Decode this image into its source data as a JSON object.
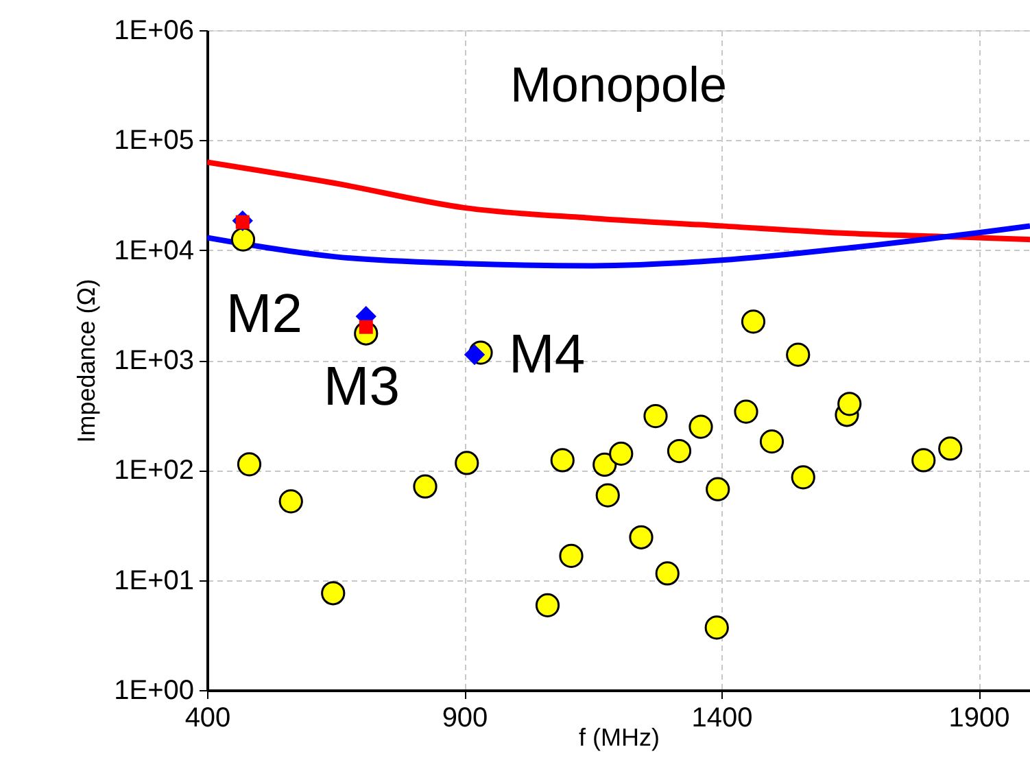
{
  "chart_data": {
    "type": "scatter",
    "xlabel": "f (MHz)",
    "ylabel": "Impedance (Ω)",
    "log": "y",
    "grid": true,
    "xlim": [
      400,
      2000
    ],
    "xticks": [
      400,
      900,
      1400,
      1900
    ],
    "ylim": [
      1,
      1000000
    ],
    "yticks": [
      {
        "value": 1,
        "label": "1E+00"
      },
      {
        "value": 10,
        "label": "1E+01"
      },
      {
        "value": 100,
        "label": "1E+02"
      },
      {
        "value": 1000,
        "label": "1E+03"
      },
      {
        "value": 10000,
        "label": "1E+04"
      },
      {
        "value": 100000,
        "label": "1E+05"
      },
      {
        "value": 1000000,
        "label": "1E+06"
      }
    ],
    "series": [
      {
        "type": "line",
        "color": "#ff0000",
        "line_style": "solid",
        "marker": "none",
        "x": [
          400,
          650,
          900,
          1150,
          1400,
          1650,
          1900,
          2000
        ],
        "values": [
          63000,
          40500,
          24300,
          19500,
          16600,
          14200,
          13000,
          12500
        ]
      },
      {
        "type": "line",
        "color": "#0000ff",
        "line_style": "solid",
        "marker": "none",
        "x": [
          400,
          650,
          900,
          1150,
          1400,
          1650,
          1900,
          2000
        ],
        "values": [
          13000,
          8700,
          7550,
          7200,
          8100,
          10500,
          14400,
          16600
        ]
      },
      {
        "color": "#ffff00",
        "marker": "circle",
        "x": [
          470,
          709,
          932,
          1462,
          1549,
          482,
          563,
          645,
          824,
          905,
          1062,
          1091,
          1108,
          1173,
          1179,
          1205,
          1244,
          1272,
          1295,
          1318,
          1360,
          1393,
          1391,
          1448,
          1498,
          1559,
          1644,
          1649,
          1793,
          1845
        ],
        "values": [
          12500,
          1750,
          1170,
          2240,
          1120,
          113,
          52,
          7.6,
          71,
          116,
          5.9,
          123,
          16.6,
          112,
          59,
          141,
          24.5,
          310,
          11.5,
          149,
          248,
          67,
          3.7,
          340,
          182,
          86,
          318,
          400,
          123,
          157
        ]
      },
      {
        "color": "#0000ff",
        "marker": "diamond",
        "x": [
          469,
          709,
          920
        ],
        "values": [
          18500,
          2500,
          1120
        ]
      },
      {
        "color": "#ff0000",
        "marker": "square",
        "x": [
          469,
          709
        ],
        "values": [
          18000,
          2000
        ]
      }
    ],
    "annotations": [
      "Monopole",
      {
        "text": "M2",
        "x": 469,
        "y": 18000
      },
      {
        "text": "M3",
        "x": 709,
        "y": 1750
      },
      {
        "text": "M4",
        "x": 920,
        "y": 1120
      }
    ]
  }
}
